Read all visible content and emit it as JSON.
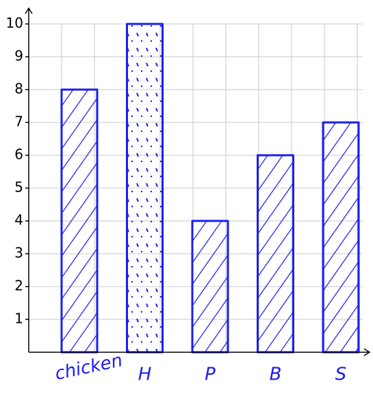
{
  "chart_data": {
    "type": "bar",
    "categories": [
      "chicken",
      "H",
      "P",
      "B",
      "S"
    ],
    "values": [
      8,
      10,
      4,
      6,
      7
    ],
    "color": "#1c1cf0",
    "ylim": [
      0,
      10
    ],
    "yticks": [
      1,
      2,
      3,
      4,
      5,
      6,
      7,
      8,
      9,
      10
    ],
    "grid": true
  }
}
